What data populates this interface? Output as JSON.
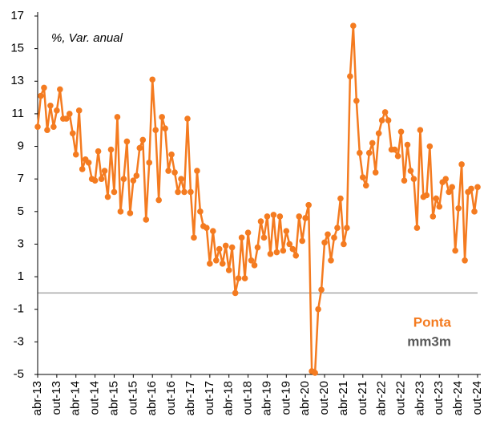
{
  "chart_data": {
    "type": "line",
    "subtitle": "%, Var. anual",
    "categories": [
      "abr-13",
      null,
      null,
      null,
      null,
      null,
      "out-13",
      null,
      null,
      null,
      null,
      null,
      "abr-14",
      null,
      null,
      null,
      null,
      null,
      "out-14",
      null,
      null,
      null,
      null,
      null,
      "abr-15",
      null,
      null,
      null,
      null,
      null,
      "out-15",
      null,
      null,
      null,
      null,
      null,
      "abr-16",
      null,
      null,
      null,
      null,
      null,
      "out-16",
      null,
      null,
      null,
      null,
      null,
      "abr-17",
      null,
      null,
      null,
      null,
      null,
      "out-17",
      null,
      null,
      null,
      null,
      null,
      "abr-18",
      null,
      null,
      null,
      null,
      null,
      "out-18",
      null,
      null,
      null,
      null,
      null,
      "abr-19",
      null,
      null,
      null,
      null,
      null,
      "out-19",
      null,
      null,
      null,
      null,
      null,
      "abr-20",
      null,
      null,
      null,
      null,
      null,
      "out-20",
      null,
      null,
      null,
      null,
      null,
      "abr-21",
      null,
      null,
      null,
      null,
      null,
      "out-21",
      null,
      null,
      null,
      null,
      null,
      "abr-22",
      null,
      null,
      null,
      null,
      null,
      "out-22",
      null,
      null,
      null,
      null,
      null,
      "abr-23",
      null,
      null,
      null,
      null,
      null,
      "out-23",
      null,
      null,
      null,
      null,
      null,
      "abr-24",
      null,
      null,
      null,
      null,
      null,
      "out-24"
    ],
    "series": [
      {
        "name": "Ponta",
        "color": "#f47b20",
        "values": [
          10.2,
          12.1,
          12.6,
          10.0,
          11.5,
          10.2,
          11.2,
          12.5,
          10.7,
          10.7,
          11.0,
          9.8,
          8.5,
          11.2,
          7.6,
          8.2,
          8.0,
          7.0,
          6.9,
          8.7,
          7.0,
          7.5,
          5.9,
          8.8,
          6.2,
          10.8,
          5.0,
          7.0,
          9.3,
          4.9,
          6.9,
          7.2,
          8.9,
          9.4,
          4.5,
          8.0,
          13.1,
          10.0,
          5.7,
          10.8,
          10.1,
          7.5,
          8.5,
          7.4,
          6.2,
          7.0,
          6.2,
          10.7,
          6.2,
          3.4,
          7.5,
          5.0,
          4.1,
          4.0,
          1.8,
          3.8,
          2.0,
          2.7,
          1.8,
          2.9,
          1.4,
          2.8,
          0.0,
          0.9,
          3.4,
          0.9,
          3.7,
          2.0,
          1.7,
          2.8,
          4.4,
          3.4,
          4.7,
          2.4,
          4.8,
          2.5,
          4.7,
          2.6,
          3.8,
          3.0,
          2.7,
          2.3,
          4.7,
          3.2,
          4.6,
          5.4,
          -4.8,
          -4.9,
          -1.0,
          0.2,
          3.1,
          3.6,
          2.0,
          3.4,
          4.0,
          5.8,
          3.0,
          4.0,
          13.3,
          16.4,
          11.8,
          8.6,
          7.1,
          6.6,
          8.6,
          9.2,
          7.4,
          9.8,
          10.6,
          11.1,
          10.6,
          8.8,
          8.8,
          8.4,
          9.9,
          6.9,
          9.1,
          7.5,
          7.0,
          4.0,
          10.0,
          5.9,
          6.0,
          9.0,
          4.7,
          5.8,
          5.3,
          6.8,
          7.0,
          6.2,
          6.5,
          2.6,
          5.2,
          7.9,
          2.0,
          6.2,
          6.4,
          5.0,
          6.5
        ]
      },
      {
        "name": "mm3m",
        "color": "#595959",
        "values": [
          null,
          null,
          null,
          null,
          null,
          null,
          null,
          null,
          null,
          null,
          null,
          null,
          null,
          null,
          null,
          null,
          null,
          null,
          null,
          null,
          null,
          null,
          null,
          null,
          null,
          null,
          null,
          null,
          null,
          null,
          null,
          null,
          null,
          null,
          null,
          null,
          null,
          null,
          null,
          null,
          null,
          null,
          null,
          null,
          null,
          null,
          null,
          null,
          null,
          null,
          null,
          null,
          null,
          null,
          null,
          null,
          null,
          null,
          null,
          null,
          null,
          null,
          null,
          null,
          null,
          null,
          null,
          null,
          null,
          null,
          null,
          null,
          null,
          null,
          null,
          null,
          null,
          null,
          null,
          null,
          null,
          null,
          null,
          null,
          null,
          null,
          null,
          null,
          null,
          null,
          null,
          null,
          null,
          null,
          null,
          null,
          null,
          null,
          null,
          null,
          null,
          null,
          null,
          null,
          null,
          null,
          null,
          null,
          null,
          null,
          null,
          null,
          null,
          null,
          null,
          null,
          null,
          null,
          null,
          null,
          null,
          null,
          null,
          null,
          null,
          null,
          null,
          null,
          null,
          null,
          null,
          null,
          null,
          null,
          null,
          null,
          null,
          null,
          null
        ]
      }
    ],
    "ylim": [
      -5,
      17
    ],
    "yticks": [
      -5,
      -3,
      -1,
      1,
      3,
      5,
      7,
      9,
      11,
      13,
      15,
      17
    ],
    "zero_line": 0,
    "zero_line_color": "#a6a6a6"
  }
}
